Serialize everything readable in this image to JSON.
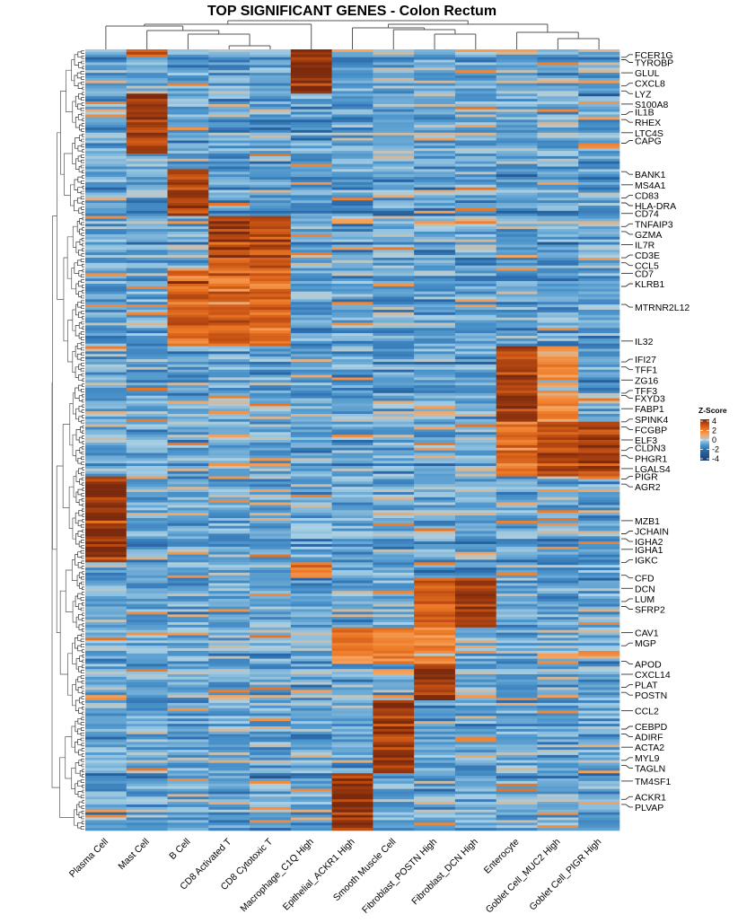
{
  "chart_data": {
    "type": "heatmap",
    "title": "TOP SIGNIFICANT GENES - Colon Rectum",
    "columns": [
      "Plasma Cell",
      "Mast Cell",
      "B Cell",
      "CD8 Activated T",
      "CD8 Cytotoxic T",
      "Macrophage_C1Q High",
      "Epithelial_ACKR1 High",
      "Smooth Muscle Cell",
      "Fibroblast_POSTN High",
      "Fibroblast_DCN High",
      "Enterocyte",
      "Goblet Cell_MUC2 High",
      "Goblet Cell_PIGR High"
    ],
    "row_count": 300,
    "row_labels": [
      "FCER1G",
      "TYROBP",
      "GLUL",
      "CXCL8",
      "LYZ",
      "S100A8",
      "IL1B",
      "RHEX",
      "LTC4S",
      "CAPG",
      "BANK1",
      "MS4A1",
      "CD83",
      "HLA-DRA",
      "CD74",
      "TNFAIP3",
      "GZMA",
      "IL7R",
      "CD3E",
      "CCL5",
      "CD7",
      "KLRB1",
      "MTRNR2L12",
      "IL32",
      "IFI27",
      "TFF1",
      "ZG16",
      "TFF3",
      "FXYD3",
      "FABP1",
      "SPINK4",
      "FCGBP",
      "ELF3",
      "CLDN3",
      "PHGR1",
      "LGALS4",
      "PIGR",
      "AGR2",
      "MZB1",
      "JCHAIN",
      "IGHA2",
      "IGHA1",
      "IGKC",
      "CFD",
      "DCN",
      "LUM",
      "SFRP2",
      "CAV1",
      "MGP",
      "APOD",
      "CXCL14",
      "PLAT",
      "POSTN",
      "CCL2",
      "CEBPD",
      "ADIRF",
      "ACTA2",
      "MYL9",
      "TAGLN",
      "TM4SF1",
      "ACKR1",
      "PLVAP"
    ],
    "blocks": [
      {
        "rows": [
          0,
          17
        ],
        "columns": [
          5
        ],
        "z": 3.8
      },
      {
        "rows": [
          0,
          3
        ],
        "columns": [
          1
        ],
        "z": 2.5
      },
      {
        "rows": [
          17,
          40
        ],
        "columns": [
          1
        ],
        "z": 3.5
      },
      {
        "rows": [
          46,
          64
        ],
        "columns": [
          2
        ],
        "z": 3.5
      },
      {
        "rows": [
          64,
          84
        ],
        "columns": [
          3,
          4
        ],
        "z": 3.0
      },
      {
        "rows": [
          84,
          114
        ],
        "columns": [
          2,
          3,
          4
        ],
        "z": 2.5
      },
      {
        "rows": [
          114,
          143
        ],
        "columns": [
          10
        ],
        "z": 3.5
      },
      {
        "rows": [
          114,
          143
        ],
        "columns": [
          11
        ],
        "z": 1.5
      },
      {
        "rows": [
          143,
          164
        ],
        "columns": [
          11,
          12
        ],
        "z": 3.0
      },
      {
        "rows": [
          143,
          164
        ],
        "columns": [
          10
        ],
        "z": 2.0
      },
      {
        "rows": [
          164,
          197
        ],
        "columns": [
          0
        ],
        "z": 3.6
      },
      {
        "rows": [
          197,
          203
        ],
        "columns": [
          5
        ],
        "z": 2.0
      },
      {
        "rows": [
          203,
          222
        ],
        "columns": [
          9
        ],
        "z": 3.6
      },
      {
        "rows": [
          203,
          222
        ],
        "columns": [
          8
        ],
        "z": 2.5
      },
      {
        "rows": [
          222,
          236
        ],
        "columns": [
          6,
          7,
          8
        ],
        "z": 1.8
      },
      {
        "rows": [
          236,
          250
        ],
        "columns": [
          8
        ],
        "z": 3.6
      },
      {
        "rows": [
          250,
          278
        ],
        "columns": [
          7
        ],
        "z": 3.6
      },
      {
        "rows": [
          278,
          300
        ],
        "columns": [
          6
        ],
        "z": 3.8
      }
    ],
    "legend": {
      "title": "Z-Score",
      "ticks": [
        "4",
        "2",
        "0",
        "-2",
        "-4"
      ],
      "range": [
        -4,
        4
      ],
      "placement": "right"
    },
    "colorscale": [
      [
        -4,
        "#1d3d6b"
      ],
      [
        -2,
        "#2a6aab"
      ],
      [
        -1,
        "#4c95cc"
      ],
      [
        0,
        "#a9d0e4"
      ],
      [
        1,
        "#f5a35e"
      ],
      [
        2,
        "#ee7a27"
      ],
      [
        3,
        "#c24e12"
      ],
      [
        4,
        "#7c2a0d"
      ]
    ],
    "dendrograms": {
      "rows": true,
      "columns": true
    }
  }
}
